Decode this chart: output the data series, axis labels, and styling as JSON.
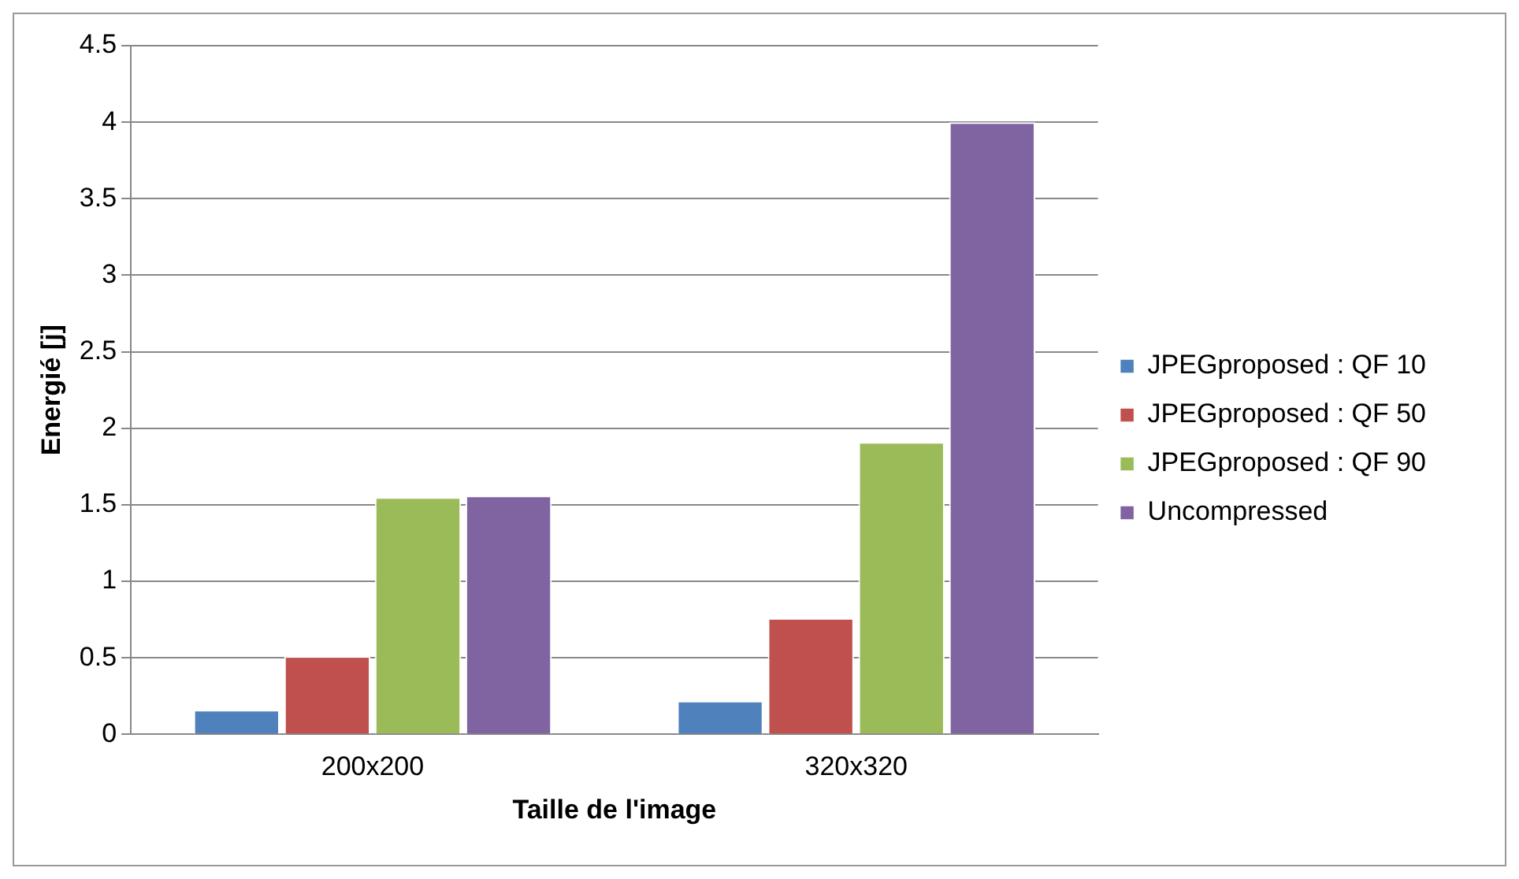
{
  "chart_data": {
    "type": "bar",
    "xlabel": "Taille de l'image",
    "ylabel": "Energié [j]",
    "categories": [
      "200x200",
      "320x320"
    ],
    "series": [
      {
        "name": "JPEGproposed : QF 10",
        "color": "#4f81bd",
        "values": [
          0.16,
          0.22
        ]
      },
      {
        "name": "JPEGproposed : QF 50",
        "color": "#c0504d",
        "values": [
          0.51,
          0.76
        ]
      },
      {
        "name": "JPEGproposed : QF 90",
        "color": "#9bbb59",
        "values": [
          1.55,
          1.91
        ]
      },
      {
        "name": "Uncompressed",
        "color": "#8064a2",
        "values": [
          1.56,
          4.0
        ]
      }
    ],
    "ylim": [
      0,
      4.5
    ],
    "yticks": [
      0,
      0.5,
      1,
      1.5,
      2,
      2.5,
      3,
      3.5,
      4,
      4.5
    ],
    "grid": "y",
    "legend": "right"
  }
}
